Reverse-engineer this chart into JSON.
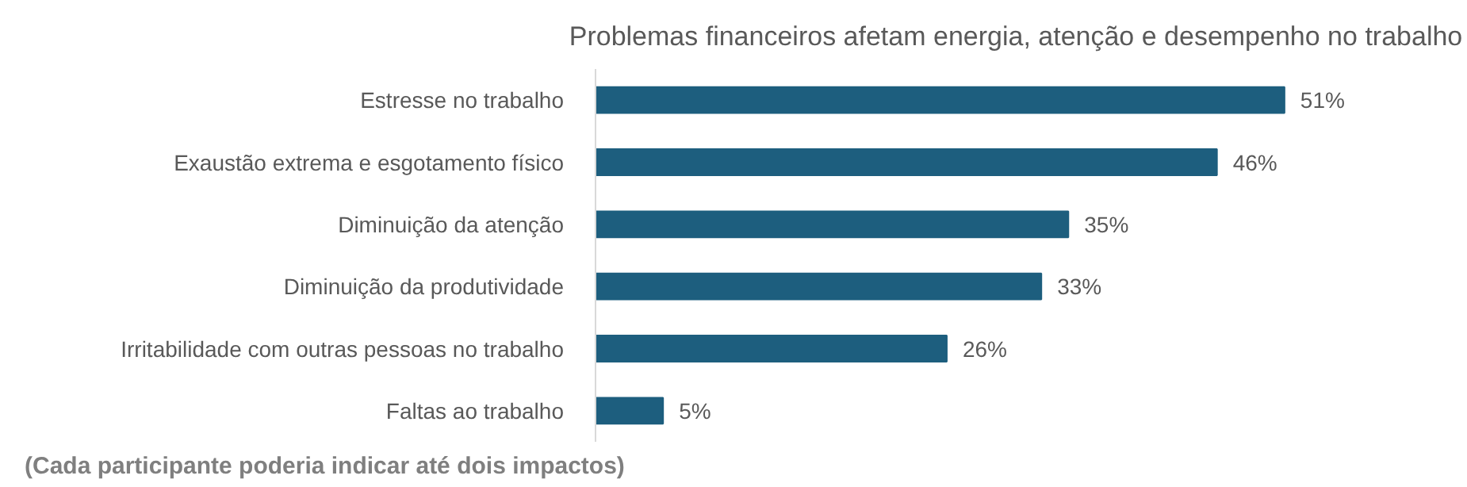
{
  "chart_data": {
    "type": "bar",
    "orientation": "horizontal",
    "title": "Problemas financeiros afetam energia, atenção e desempenho no trabalho",
    "categories": [
      "Estresse no trabalho",
      "Exaustão extrema e esgotamento físico",
      "Diminuição da atenção",
      "Diminuição da produtividade",
      "Irritabilidade com outras pessoas no trabalho",
      "Faltas ao trabalho"
    ],
    "values": [
      51,
      46,
      35,
      33,
      26,
      5
    ],
    "value_labels": [
      "51%",
      "46%",
      "35%",
      "33%",
      "26%",
      "5%"
    ],
    "color": "#1d5e7e",
    "grid": false,
    "annotations": [
      "(Cada participante poderia indicar até dois impactos)"
    ]
  }
}
